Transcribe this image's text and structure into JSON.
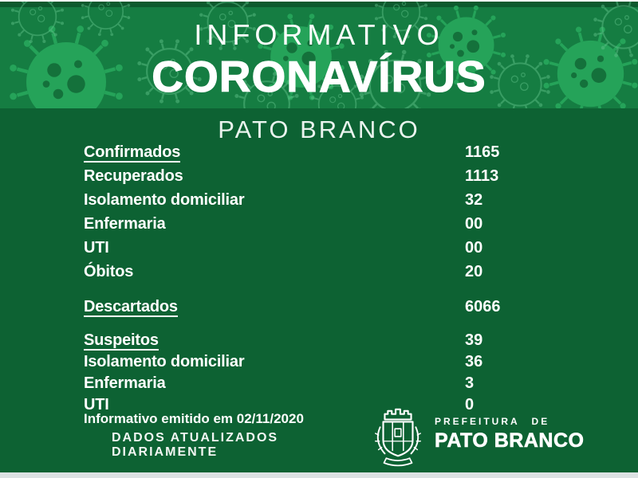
{
  "colors": {
    "main_bg": "#0d6233",
    "header_bg": "#157d42",
    "top_strip": "#0b5129",
    "bottom_strip": "#dce2e3",
    "virus_filled": "#26a65b",
    "virus_outline": "#63c48c",
    "text": "#ffffff",
    "subtitle_text": "#eaf4ee"
  },
  "header": {
    "line1": "INFORMATIVO",
    "line2": "CORONAVÍRUS",
    "city": "PATO BRANCO"
  },
  "stats": {
    "sections": [
      {
        "rows": [
          {
            "label": "Confirmados",
            "value": "1165",
            "underline": true
          },
          {
            "label": "Recuperados",
            "value": "1113"
          },
          {
            "label": "Isolamento domiciliar",
            "value": "32"
          },
          {
            "label": "Enfermaria",
            "value": "00"
          },
          {
            "label": "UTI",
            "value": "00"
          },
          {
            "label": "Óbitos",
            "value": "20"
          }
        ]
      },
      {
        "rows": [
          {
            "label": "Descartados",
            "value": "6066",
            "underline": true
          }
        ]
      },
      {
        "rows": [
          {
            "label": "Suspeitos",
            "value": "39",
            "underline": true
          },
          {
            "label": "Isolamento domiciliar",
            "value": "36"
          },
          {
            "label": "Enfermaria",
            "value": "3"
          },
          {
            "label": "UTI",
            "value": "0"
          }
        ]
      }
    ]
  },
  "footer": {
    "issued": "Informativo emitido em 02/11/2020",
    "updated_line1": "DADOS ATUALIZADOS",
    "updated_line2": "DIARIAMENTE",
    "logo": {
      "icon": "coat-of-arms-icon",
      "small": "PREFEITURA DE",
      "big": "PATO BRANCO"
    }
  }
}
